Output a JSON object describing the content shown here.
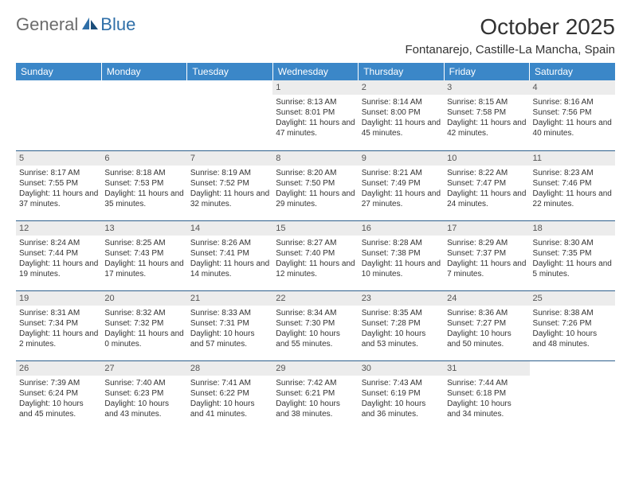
{
  "brand": {
    "general": "General",
    "blue": "Blue"
  },
  "title": "October 2025",
  "location": "Fontanarejo, Castille-La Mancha, Spain",
  "day_headers": [
    "Sunday",
    "Monday",
    "Tuesday",
    "Wednesday",
    "Thursday",
    "Friday",
    "Saturday"
  ],
  "colors": {
    "header_bg": "#3b87c8",
    "header_text": "#ffffff",
    "rule": "#2d5f8c",
    "daynum_bg": "#ececec",
    "body_text": "#333333",
    "logo_gray": "#6b6b6b",
    "logo_blue": "#2f6fa8"
  },
  "weeks": [
    [
      {
        "num": "",
        "sunrise": "",
        "sunset": "",
        "daylight": "",
        "empty": true
      },
      {
        "num": "",
        "sunrise": "",
        "sunset": "",
        "daylight": "",
        "empty": true
      },
      {
        "num": "",
        "sunrise": "",
        "sunset": "",
        "daylight": "",
        "empty": true
      },
      {
        "num": "1",
        "sunrise": "Sunrise: 8:13 AM",
        "sunset": "Sunset: 8:01 PM",
        "daylight": "Daylight: 11 hours and 47 minutes."
      },
      {
        "num": "2",
        "sunrise": "Sunrise: 8:14 AM",
        "sunset": "Sunset: 8:00 PM",
        "daylight": "Daylight: 11 hours and 45 minutes."
      },
      {
        "num": "3",
        "sunrise": "Sunrise: 8:15 AM",
        "sunset": "Sunset: 7:58 PM",
        "daylight": "Daylight: 11 hours and 42 minutes."
      },
      {
        "num": "4",
        "sunrise": "Sunrise: 8:16 AM",
        "sunset": "Sunset: 7:56 PM",
        "daylight": "Daylight: 11 hours and 40 minutes."
      }
    ],
    [
      {
        "num": "5",
        "sunrise": "Sunrise: 8:17 AM",
        "sunset": "Sunset: 7:55 PM",
        "daylight": "Daylight: 11 hours and 37 minutes."
      },
      {
        "num": "6",
        "sunrise": "Sunrise: 8:18 AM",
        "sunset": "Sunset: 7:53 PM",
        "daylight": "Daylight: 11 hours and 35 minutes."
      },
      {
        "num": "7",
        "sunrise": "Sunrise: 8:19 AM",
        "sunset": "Sunset: 7:52 PM",
        "daylight": "Daylight: 11 hours and 32 minutes."
      },
      {
        "num": "8",
        "sunrise": "Sunrise: 8:20 AM",
        "sunset": "Sunset: 7:50 PM",
        "daylight": "Daylight: 11 hours and 29 minutes."
      },
      {
        "num": "9",
        "sunrise": "Sunrise: 8:21 AM",
        "sunset": "Sunset: 7:49 PM",
        "daylight": "Daylight: 11 hours and 27 minutes."
      },
      {
        "num": "10",
        "sunrise": "Sunrise: 8:22 AM",
        "sunset": "Sunset: 7:47 PM",
        "daylight": "Daylight: 11 hours and 24 minutes."
      },
      {
        "num": "11",
        "sunrise": "Sunrise: 8:23 AM",
        "sunset": "Sunset: 7:46 PM",
        "daylight": "Daylight: 11 hours and 22 minutes."
      }
    ],
    [
      {
        "num": "12",
        "sunrise": "Sunrise: 8:24 AM",
        "sunset": "Sunset: 7:44 PM",
        "daylight": "Daylight: 11 hours and 19 minutes."
      },
      {
        "num": "13",
        "sunrise": "Sunrise: 8:25 AM",
        "sunset": "Sunset: 7:43 PM",
        "daylight": "Daylight: 11 hours and 17 minutes."
      },
      {
        "num": "14",
        "sunrise": "Sunrise: 8:26 AM",
        "sunset": "Sunset: 7:41 PM",
        "daylight": "Daylight: 11 hours and 14 minutes."
      },
      {
        "num": "15",
        "sunrise": "Sunrise: 8:27 AM",
        "sunset": "Sunset: 7:40 PM",
        "daylight": "Daylight: 11 hours and 12 minutes."
      },
      {
        "num": "16",
        "sunrise": "Sunrise: 8:28 AM",
        "sunset": "Sunset: 7:38 PM",
        "daylight": "Daylight: 11 hours and 10 minutes."
      },
      {
        "num": "17",
        "sunrise": "Sunrise: 8:29 AM",
        "sunset": "Sunset: 7:37 PM",
        "daylight": "Daylight: 11 hours and 7 minutes."
      },
      {
        "num": "18",
        "sunrise": "Sunrise: 8:30 AM",
        "sunset": "Sunset: 7:35 PM",
        "daylight": "Daylight: 11 hours and 5 minutes."
      }
    ],
    [
      {
        "num": "19",
        "sunrise": "Sunrise: 8:31 AM",
        "sunset": "Sunset: 7:34 PM",
        "daylight": "Daylight: 11 hours and 2 minutes."
      },
      {
        "num": "20",
        "sunrise": "Sunrise: 8:32 AM",
        "sunset": "Sunset: 7:32 PM",
        "daylight": "Daylight: 11 hours and 0 minutes."
      },
      {
        "num": "21",
        "sunrise": "Sunrise: 8:33 AM",
        "sunset": "Sunset: 7:31 PM",
        "daylight": "Daylight: 10 hours and 57 minutes."
      },
      {
        "num": "22",
        "sunrise": "Sunrise: 8:34 AM",
        "sunset": "Sunset: 7:30 PM",
        "daylight": "Daylight: 10 hours and 55 minutes."
      },
      {
        "num": "23",
        "sunrise": "Sunrise: 8:35 AM",
        "sunset": "Sunset: 7:28 PM",
        "daylight": "Daylight: 10 hours and 53 minutes."
      },
      {
        "num": "24",
        "sunrise": "Sunrise: 8:36 AM",
        "sunset": "Sunset: 7:27 PM",
        "daylight": "Daylight: 10 hours and 50 minutes."
      },
      {
        "num": "25",
        "sunrise": "Sunrise: 8:38 AM",
        "sunset": "Sunset: 7:26 PM",
        "daylight": "Daylight: 10 hours and 48 minutes."
      }
    ],
    [
      {
        "num": "26",
        "sunrise": "Sunrise: 7:39 AM",
        "sunset": "Sunset: 6:24 PM",
        "daylight": "Daylight: 10 hours and 45 minutes."
      },
      {
        "num": "27",
        "sunrise": "Sunrise: 7:40 AM",
        "sunset": "Sunset: 6:23 PM",
        "daylight": "Daylight: 10 hours and 43 minutes."
      },
      {
        "num": "28",
        "sunrise": "Sunrise: 7:41 AM",
        "sunset": "Sunset: 6:22 PM",
        "daylight": "Daylight: 10 hours and 41 minutes."
      },
      {
        "num": "29",
        "sunrise": "Sunrise: 7:42 AM",
        "sunset": "Sunset: 6:21 PM",
        "daylight": "Daylight: 10 hours and 38 minutes."
      },
      {
        "num": "30",
        "sunrise": "Sunrise: 7:43 AM",
        "sunset": "Sunset: 6:19 PM",
        "daylight": "Daylight: 10 hours and 36 minutes."
      },
      {
        "num": "31",
        "sunrise": "Sunrise: 7:44 AM",
        "sunset": "Sunset: 6:18 PM",
        "daylight": "Daylight: 10 hours and 34 minutes."
      },
      {
        "num": "",
        "sunrise": "",
        "sunset": "",
        "daylight": "",
        "empty": true
      }
    ]
  ]
}
